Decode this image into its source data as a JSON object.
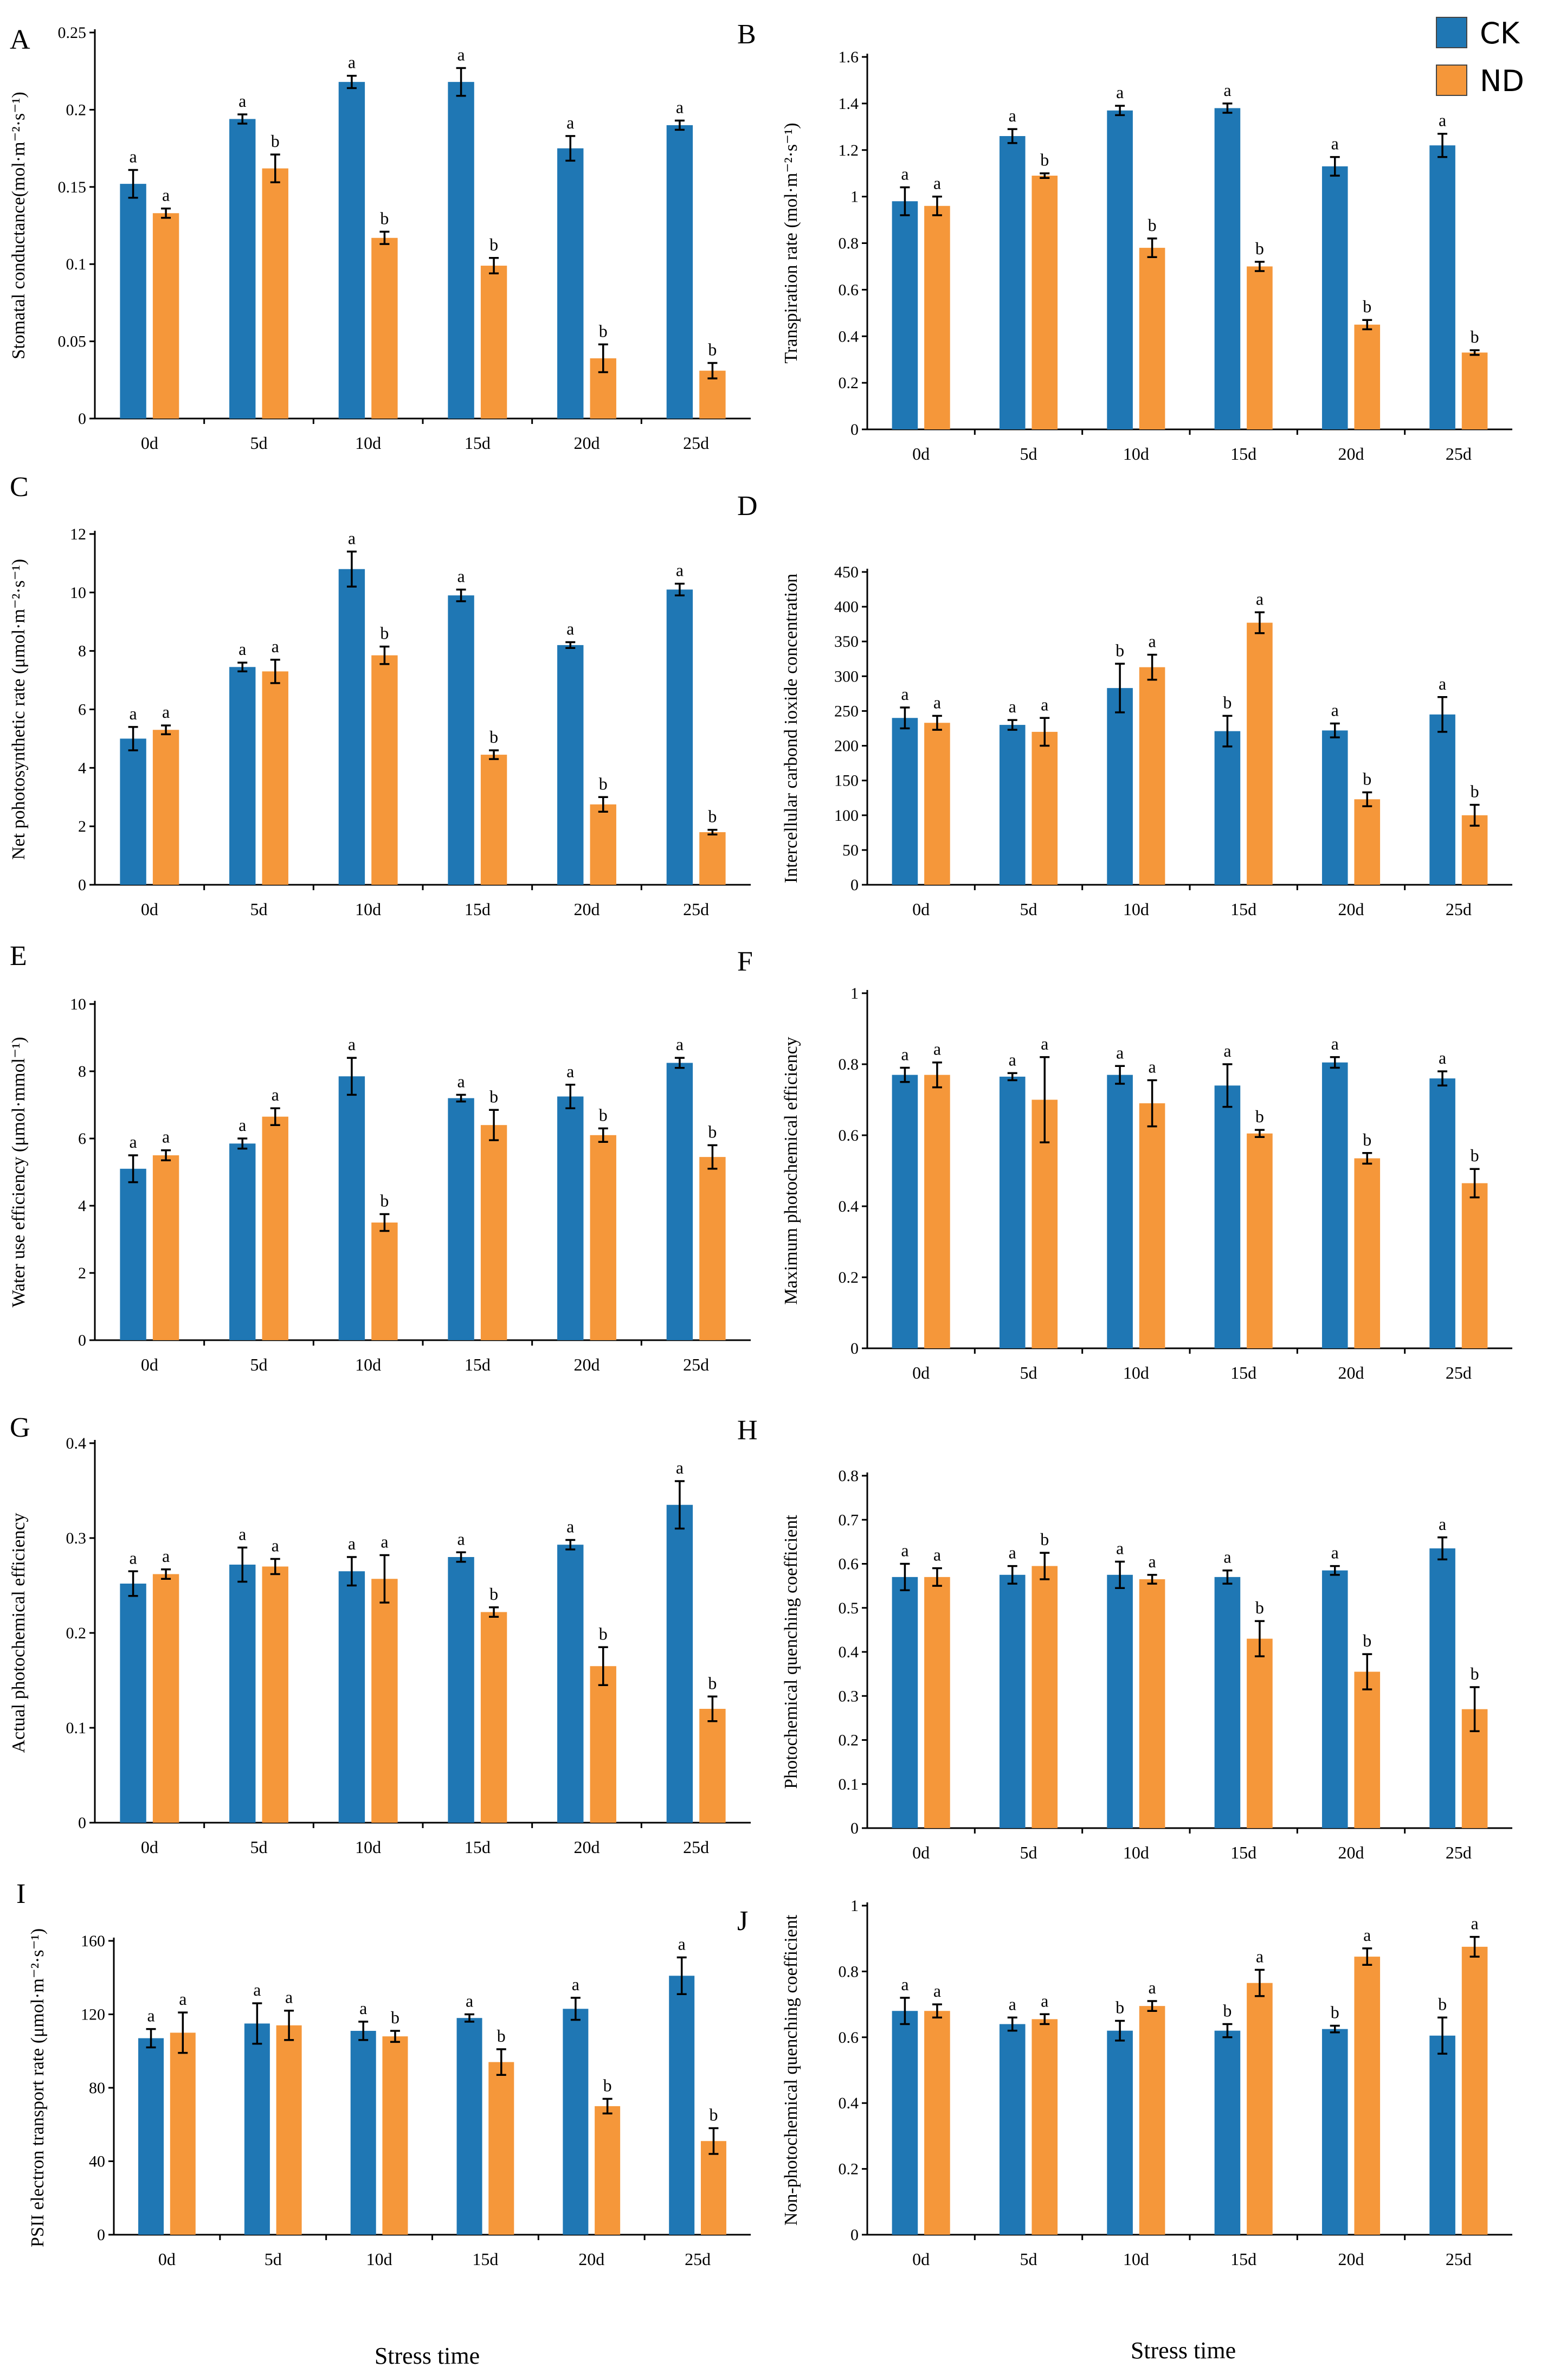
{
  "legend": [
    {
      "name": "CK",
      "color": "#1f77b4"
    },
    {
      "name": "ND",
      "color": "#f5973a"
    }
  ],
  "colors": {
    "CK": "#1f77b4",
    "ND": "#f5973a",
    "axis": "#000000"
  },
  "xlabel": "Stress time",
  "chart_data": [
    {
      "panel": "A",
      "type": "bar",
      "ylabel": "Stomatal conductance(mol·m⁻²·s⁻¹)",
      "categories": [
        "0d",
        "5d",
        "10d",
        "15d",
        "20d",
        "25d"
      ],
      "ylim": [
        0,
        0.25
      ],
      "yticks": [
        "0",
        "0.05",
        "0.1",
        "0.15",
        "0.2",
        "0.25"
      ],
      "series": [
        {
          "name": "CK",
          "values": [
            0.152,
            0.194,
            0.218,
            0.218,
            0.175,
            0.19
          ],
          "errors": [
            0.009,
            0.003,
            0.004,
            0.009,
            0.008,
            0.003
          ],
          "labels": [
            "a",
            "a",
            "a",
            "a",
            "a",
            "a"
          ]
        },
        {
          "name": "ND",
          "values": [
            0.133,
            0.162,
            0.117,
            0.099,
            0.039,
            0.031
          ],
          "errors": [
            0.003,
            0.009,
            0.004,
            0.005,
            0.009,
            0.005
          ],
          "labels": [
            "a",
            "b",
            "b",
            "b",
            "b",
            "b"
          ]
        }
      ]
    },
    {
      "panel": "B",
      "type": "bar",
      "ylabel": "Transpiration rate (mol·m⁻²·s⁻¹)",
      "categories": [
        "0d",
        "5d",
        "10d",
        "15d",
        "20d",
        "25d"
      ],
      "ylim": [
        0,
        1.6
      ],
      "yticks": [
        "0",
        "0.2",
        "0.4",
        "0.6",
        "0.8",
        "1",
        "1.2",
        "1.4",
        "1.6"
      ],
      "series": [
        {
          "name": "CK",
          "values": [
            0.98,
            1.26,
            1.37,
            1.38,
            1.13,
            1.22
          ],
          "errors": [
            0.06,
            0.03,
            0.02,
            0.02,
            0.04,
            0.05
          ],
          "labels": [
            "a",
            "a",
            "a",
            "a",
            "a",
            "a"
          ]
        },
        {
          "name": "ND",
          "values": [
            0.96,
            1.09,
            0.78,
            0.7,
            0.45,
            0.33
          ],
          "errors": [
            0.04,
            0.01,
            0.04,
            0.02,
            0.02,
            0.01
          ],
          "labels": [
            "a",
            "b",
            "b",
            "b",
            "b",
            "b"
          ]
        }
      ]
    },
    {
      "panel": "C",
      "type": "bar",
      "ylabel": "Net pohotosynthetic rate (μmol·m⁻²·s⁻¹)",
      "categories": [
        "0d",
        "5d",
        "10d",
        "15d",
        "20d",
        "25d"
      ],
      "ylim": [
        0,
        12
      ],
      "yticks": [
        "0",
        "2",
        "4",
        "6",
        "8",
        "10",
        "12"
      ],
      "series": [
        {
          "name": "CK",
          "values": [
            5.0,
            7.45,
            10.8,
            9.9,
            8.2,
            10.1
          ],
          "errors": [
            0.4,
            0.15,
            0.6,
            0.2,
            0.1,
            0.2
          ],
          "labels": [
            "a",
            "a",
            "a",
            "a",
            "a",
            "a"
          ]
        },
        {
          "name": "ND",
          "values": [
            5.3,
            7.3,
            7.85,
            4.45,
            2.75,
            1.8
          ],
          "errors": [
            0.15,
            0.4,
            0.3,
            0.15,
            0.25,
            0.08
          ],
          "labels": [
            "a",
            "a",
            "b",
            "b",
            "b",
            "b"
          ]
        }
      ]
    },
    {
      "panel": "D",
      "type": "bar",
      "ylabel": "Intercellular carbond ioxide concentration",
      "categories": [
        "0d",
        "5d",
        "10d",
        "15d",
        "20d",
        "25d"
      ],
      "ylim": [
        0,
        450
      ],
      "yticks": [
        "0",
        "50",
        "100",
        "150",
        "200",
        "250",
        "300",
        "350",
        "400",
        "450"
      ],
      "series": [
        {
          "name": "CK",
          "values": [
            240,
            230,
            283,
            221,
            222,
            245
          ],
          "errors": [
            15,
            7,
            35,
            22,
            10,
            25
          ],
          "labels": [
            "a",
            "a",
            "b",
            "b",
            "a",
            "a"
          ]
        },
        {
          "name": "ND",
          "values": [
            233,
            220,
            313,
            377,
            123,
            100
          ],
          "errors": [
            10,
            20,
            18,
            15,
            10,
            15
          ],
          "labels": [
            "a",
            "a",
            "a",
            "a",
            "b",
            "b"
          ]
        }
      ]
    },
    {
      "panel": "E",
      "type": "bar",
      "ylabel": "Water use efficiency (μmol·mmol⁻¹)",
      "categories": [
        "0d",
        "5d",
        "10d",
        "15d",
        "20d",
        "25d"
      ],
      "ylim": [
        0,
        10
      ],
      "yticks": [
        "0",
        "2",
        "4",
        "6",
        "8",
        "10"
      ],
      "series": [
        {
          "name": "CK",
          "values": [
            5.1,
            5.85,
            7.85,
            7.2,
            7.25,
            8.25
          ],
          "errors": [
            0.4,
            0.15,
            0.55,
            0.1,
            0.35,
            0.15
          ],
          "labels": [
            "a",
            "a",
            "a",
            "a",
            "a",
            "a"
          ]
        },
        {
          "name": "ND",
          "values": [
            5.5,
            6.65,
            3.5,
            6.4,
            6.1,
            5.45
          ],
          "errors": [
            0.15,
            0.25,
            0.25,
            0.45,
            0.2,
            0.35
          ],
          "labels": [
            "a",
            "a",
            "b",
            "b",
            "b",
            "b"
          ]
        }
      ]
    },
    {
      "panel": "F",
      "type": "bar",
      "ylabel": "Maximum photochemical efficiency",
      "categories": [
        "0d",
        "5d",
        "10d",
        "15d",
        "20d",
        "25d"
      ],
      "ylim": [
        0,
        1
      ],
      "yticks": [
        "0",
        "0.2",
        "0.4",
        "0.6",
        "0.8",
        "1"
      ],
      "series": [
        {
          "name": "CK",
          "values": [
            0.77,
            0.765,
            0.77,
            0.74,
            0.805,
            0.76
          ],
          "errors": [
            0.02,
            0.01,
            0.025,
            0.06,
            0.015,
            0.02
          ],
          "labels": [
            "a",
            "a",
            "a",
            "a",
            "a",
            "a"
          ]
        },
        {
          "name": "ND",
          "values": [
            0.77,
            0.7,
            0.69,
            0.605,
            0.535,
            0.465
          ],
          "errors": [
            0.035,
            0.12,
            0.065,
            0.01,
            0.015,
            0.04
          ],
          "labels": [
            "a",
            "a",
            "a",
            "b",
            "b",
            "b"
          ]
        }
      ]
    },
    {
      "panel": "G",
      "type": "bar",
      "ylabel": "Actual photochemical efficiency",
      "categories": [
        "0d",
        "5d",
        "10d",
        "15d",
        "20d",
        "25d"
      ],
      "ylim": [
        0,
        0.4
      ],
      "yticks": [
        "0",
        "0.1",
        "0.2",
        "0.3",
        "0.4"
      ],
      "series": [
        {
          "name": "CK",
          "values": [
            0.252,
            0.272,
            0.265,
            0.28,
            0.293,
            0.335
          ],
          "errors": [
            0.013,
            0.018,
            0.015,
            0.005,
            0.005,
            0.025
          ],
          "labels": [
            "a",
            "a",
            "a",
            "a",
            "a",
            "a"
          ]
        },
        {
          "name": "ND",
          "values": [
            0.262,
            0.27,
            0.257,
            0.222,
            0.165,
            0.12
          ],
          "errors": [
            0.005,
            0.008,
            0.025,
            0.005,
            0.02,
            0.013
          ],
          "labels": [
            "a",
            "a",
            "a",
            "b",
            "b",
            "b"
          ]
        }
      ]
    },
    {
      "panel": "H",
      "type": "bar",
      "ylabel": "Photochemical quenching coefficient",
      "categories": [
        "0d",
        "5d",
        "10d",
        "15d",
        "20d",
        "25d"
      ],
      "ylim": [
        0,
        0.8
      ],
      "yticks": [
        "0",
        "0.1",
        "0.2",
        "0.3",
        "0.4",
        "0.5",
        "0.6",
        "0.7",
        "0.8"
      ],
      "series": [
        {
          "name": "CK",
          "values": [
            0.57,
            0.575,
            0.575,
            0.57,
            0.585,
            0.635
          ],
          "errors": [
            0.03,
            0.02,
            0.03,
            0.015,
            0.01,
            0.025
          ],
          "labels": [
            "a",
            "a",
            "a",
            "a",
            "a",
            "a"
          ]
        },
        {
          "name": "ND",
          "values": [
            0.57,
            0.595,
            0.565,
            0.43,
            0.355,
            0.27
          ],
          "errors": [
            0.02,
            0.03,
            0.01,
            0.04,
            0.04,
            0.05
          ],
          "labels": [
            "a",
            "b",
            "a",
            "b",
            "b",
            "b"
          ]
        }
      ]
    },
    {
      "panel": "I",
      "type": "bar",
      "ylabel": "PSII electron transport rate (μmol·m⁻²·s⁻¹)",
      "xlabel": "Stress time",
      "categories": [
        "0d",
        "5d",
        "10d",
        "15d",
        "20d",
        "25d"
      ],
      "ylim": [
        0,
        160
      ],
      "yticks": [
        "0",
        "40",
        "80",
        "120",
        "160"
      ],
      "series": [
        {
          "name": "CK",
          "values": [
            107,
            115,
            111,
            118,
            123,
            141
          ],
          "errors": [
            5,
            11,
            5,
            2,
            6,
            10
          ],
          "labels": [
            "a",
            "a",
            "a",
            "a",
            "a",
            "a"
          ]
        },
        {
          "name": "ND",
          "values": [
            110,
            114,
            108,
            94,
            70,
            51
          ],
          "errors": [
            11,
            8,
            3,
            7,
            4,
            7
          ],
          "labels": [
            "a",
            "a",
            "b",
            "b",
            "b",
            "b"
          ]
        }
      ]
    },
    {
      "panel": "J",
      "type": "bar",
      "ylabel": "Non-photochemical quenching coefficient",
      "xlabel": "Stress time",
      "categories": [
        "0d",
        "5d",
        "10d",
        "15d",
        "20d",
        "25d"
      ],
      "ylim": [
        0,
        1
      ],
      "yticks": [
        "0",
        "0.2",
        "0.4",
        "0.6",
        "0.8",
        "1"
      ],
      "series": [
        {
          "name": "CK",
          "values": [
            0.68,
            0.64,
            0.62,
            0.62,
            0.625,
            0.605
          ],
          "errors": [
            0.04,
            0.02,
            0.03,
            0.02,
            0.01,
            0.055
          ],
          "labels": [
            "a",
            "a",
            "b",
            "b",
            "b",
            "b"
          ]
        },
        {
          "name": "ND",
          "values": [
            0.68,
            0.655,
            0.695,
            0.765,
            0.845,
            0.875
          ],
          "errors": [
            0.02,
            0.015,
            0.015,
            0.04,
            0.025,
            0.03
          ],
          "labels": [
            "a",
            "a",
            "a",
            "a",
            "a",
            "a"
          ]
        }
      ]
    }
  ]
}
